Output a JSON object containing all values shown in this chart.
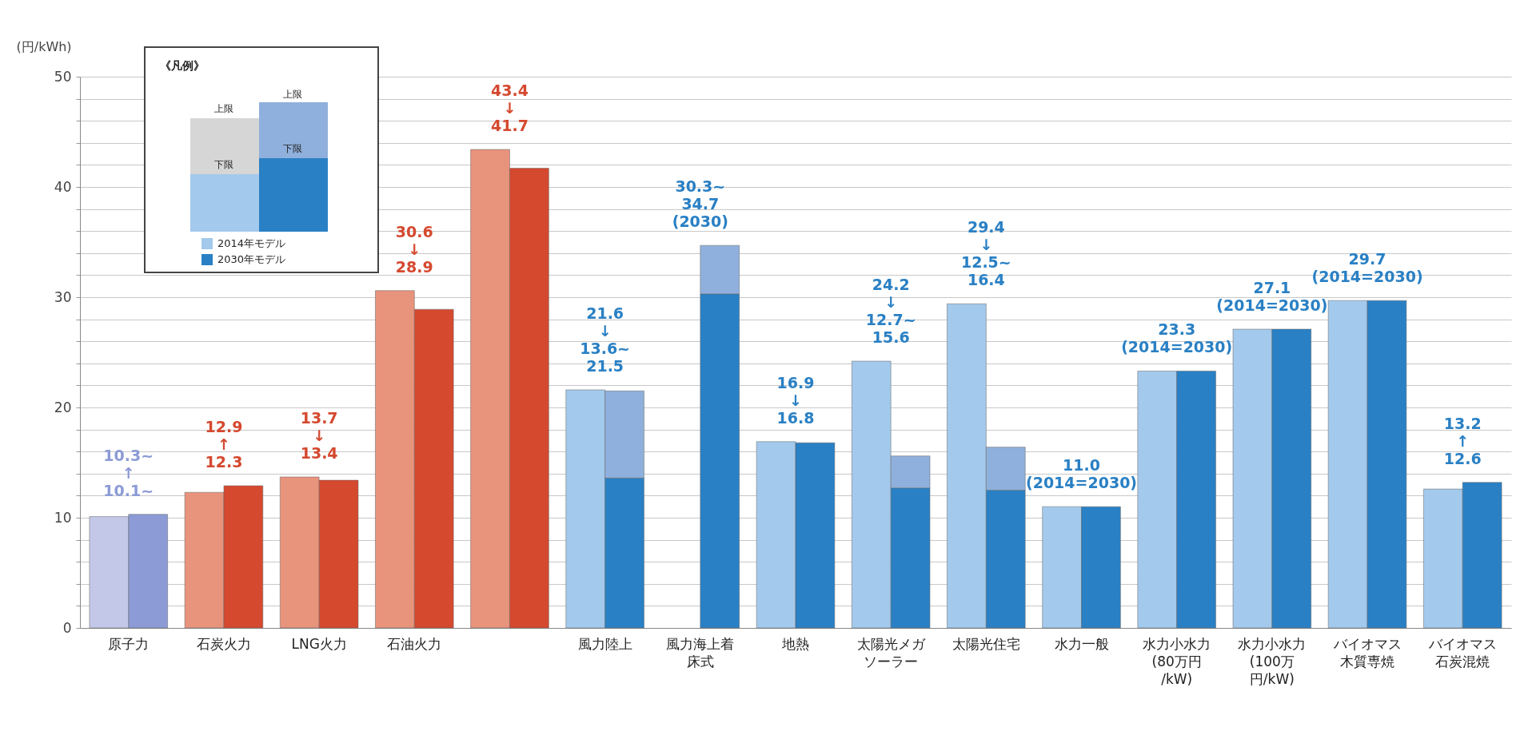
{
  "chart_data": {
    "type": "bar",
    "ylabel": "(円/kWh)",
    "legend_title": "《凡例》",
    "legend": "top left",
    "grid": "y",
    "categories": [
      "原子力",
      "石炭火力",
      "LNG火力",
      "石油火力",
      null,
      "風力陸上",
      "風力海上着床式",
      "地熱",
      "太陽光メガソーラー",
      "太陽光住宅",
      "水力一般",
      "水力小水力(80万円/kW)",
      "水力小水力(100万円/kW)",
      "バイオマス木質専焼",
      "バイオマス石炭混焼"
    ],
    "ylim": [
      0,
      50
    ],
    "yticks": [
      0,
      {
        "value": 2,
        "label": null
      },
      {
        "value": 4,
        "label": null
      },
      {
        "value": 6,
        "label": null
      },
      {
        "value": 8,
        "label": null
      },
      10,
      {
        "value": 12,
        "label": null
      },
      {
        "value": 14,
        "label": null
      },
      {
        "value": 16,
        "label": null
      },
      {
        "value": 18,
        "label": null
      },
      20,
      {
        "value": 22,
        "label": null
      },
      {
        "value": 24,
        "label": null
      },
      {
        "value": 26,
        "label": null
      },
      {
        "value": 28,
        "label": null
      },
      30,
      {
        "value": 32,
        "label": null
      },
      {
        "value": 34,
        "label": null
      },
      {
        "value": 36,
        "label": null
      },
      {
        "value": 38,
        "label": null
      },
      40,
      {
        "value": 42,
        "label": null
      },
      {
        "value": 44,
        "label": null
      },
      {
        "value": 46,
        "label": null
      },
      {
        "value": 48,
        "label": null
      },
      50
    ],
    "series": [
      {
        "name": "2014年モデル",
        "values": [
          10.1,
          12.3,
          13.7,
          30.6,
          43.4,
          21.6,
          null,
          16.9,
          24.2,
          29.4,
          11.0,
          23.3,
          27.1,
          29.7,
          12.6
        ],
        "colors": [
          "#c3c8e8",
          "#e8937c",
          "#e8937c",
          "#e8937c",
          "#e8937c",
          "#a3c9ec",
          null,
          "#a3c9ec",
          "#a3c9ec",
          "#a3c9ec",
          "#a3c9ec",
          "#a3c9ec",
          "#a3c9ec",
          "#a3c9ec",
          "#a3c9ec"
        ]
      },
      {
        "name": "2030年モデル",
        "values": [
          10.3,
          12.9,
          13.4,
          28.9,
          41.7,
          13.6,
          30.3,
          16.8,
          12.7,
          12.5,
          11.0,
          23.3,
          27.1,
          29.7,
          13.2
        ],
        "colors": [
          "#8c9bd6",
          "#d5492f",
          "#d5492f",
          "#d5492f",
          "#d5492f",
          "#2a80c4",
          "#2a80c4",
          "#2a80c4",
          "#2a80c4",
          "#2a80c4",
          "#2a80c4",
          "#2a80c4",
          "#2a80c4",
          "#2a80c4",
          "#2a80c4"
        ]
      },
      {
        "color": "#8fb0dc",
        "base": [
          null,
          null,
          null,
          null,
          null,
          13.6,
          30.3,
          null,
          12.7,
          12.5,
          null,
          null,
          null,
          null,
          null
        ],
        "values": [
          null,
          null,
          null,
          null,
          null,
          7.9,
          4.4,
          null,
          2.9,
          3.9,
          null,
          null,
          null,
          null,
          null
        ]
      }
    ],
    "annotations": [
      {
        "text": "10.3~\n↑\n10.1~",
        "x": "原子力",
        "y": 10.3
      },
      {
        "text": "12.9\n↑\n12.3",
        "x": "石炭火力",
        "y": 12.9
      },
      {
        "text": "13.7\n↓\n13.4",
        "x": "LNG火力",
        "y": 13.7
      },
      {
        "text": "30.6\n↓\n28.9",
        "x": "石油火力",
        "y": 30.6
      },
      {
        "text": "43.4\n↓\n41.7",
        "y": 43.4
      },
      {
        "text": "21.6\n↓\n13.6~\n21.5",
        "x": "風力陸上",
        "y": 21.6
      },
      {
        "text": "30.3~\n34.7\n(2030)",
        "x": "風力海上着床式",
        "y": 34.7
      },
      {
        "text": "16.9\n↓\n16.8",
        "x": "地熱",
        "y": 16.9
      },
      {
        "text": "24.2\n↓\n12.7~\n15.6",
        "x": "太陽光メガソーラー",
        "y": 24.2
      },
      {
        "text": "29.4\n↓\n12.5~\n16.4",
        "x": "太陽光住宅",
        "y": 29.4
      },
      {
        "text": "11.0\n(2014=2030)",
        "x": "水力一般",
        "y": 11.0
      },
      {
        "text": "23.3\n(2014=2030)",
        "x": "水力小水力(80万円/kW)",
        "y": 23.3
      },
      {
        "text": "27.1\n(2014=2030)",
        "x": "水力小水力(100万円/kW)",
        "y": 27.1
      },
      {
        "text": "29.7\n(2014=2030)",
        "x": "バイオマス木質専焼",
        "y": 29.7
      },
      {
        "text": "13.2\n↑\n12.6",
        "x": "バイオマス石炭混焼",
        "y": 13.2
      },
      "上限",
      "下限"
    ]
  }
}
